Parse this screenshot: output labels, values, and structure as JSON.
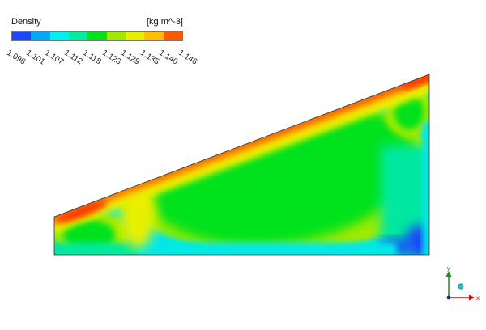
{
  "legend": {
    "title": "Density",
    "unit": "[kg m^-3]",
    "ticks": [
      "1.096",
      "1.101",
      "1.107",
      "1.112",
      "1.118",
      "1.123",
      "1.129",
      "1.135",
      "1.140",
      "1.146"
    ],
    "colors": [
      "#1d47ff",
      "#00a8ff",
      "#00f0f0",
      "#00ee9c",
      "#00e21b",
      "#9fea00",
      "#e8f000",
      "#ffbf00",
      "#ff5a00"
    ]
  },
  "contour_colors": {
    "low": "#1d47ff",
    "cyan": "#00e8e8",
    "teal": "#00e8a0",
    "green": "#00e21b",
    "yellowgreen": "#9fea00",
    "yellow": "#e8f000",
    "orange": "#ffbf00",
    "red": "#ff3a00"
  },
  "axes_triad": {
    "x_label": "x",
    "y_label": "y",
    "x_color": "#e00000",
    "y_color": "#00a000"
  }
}
